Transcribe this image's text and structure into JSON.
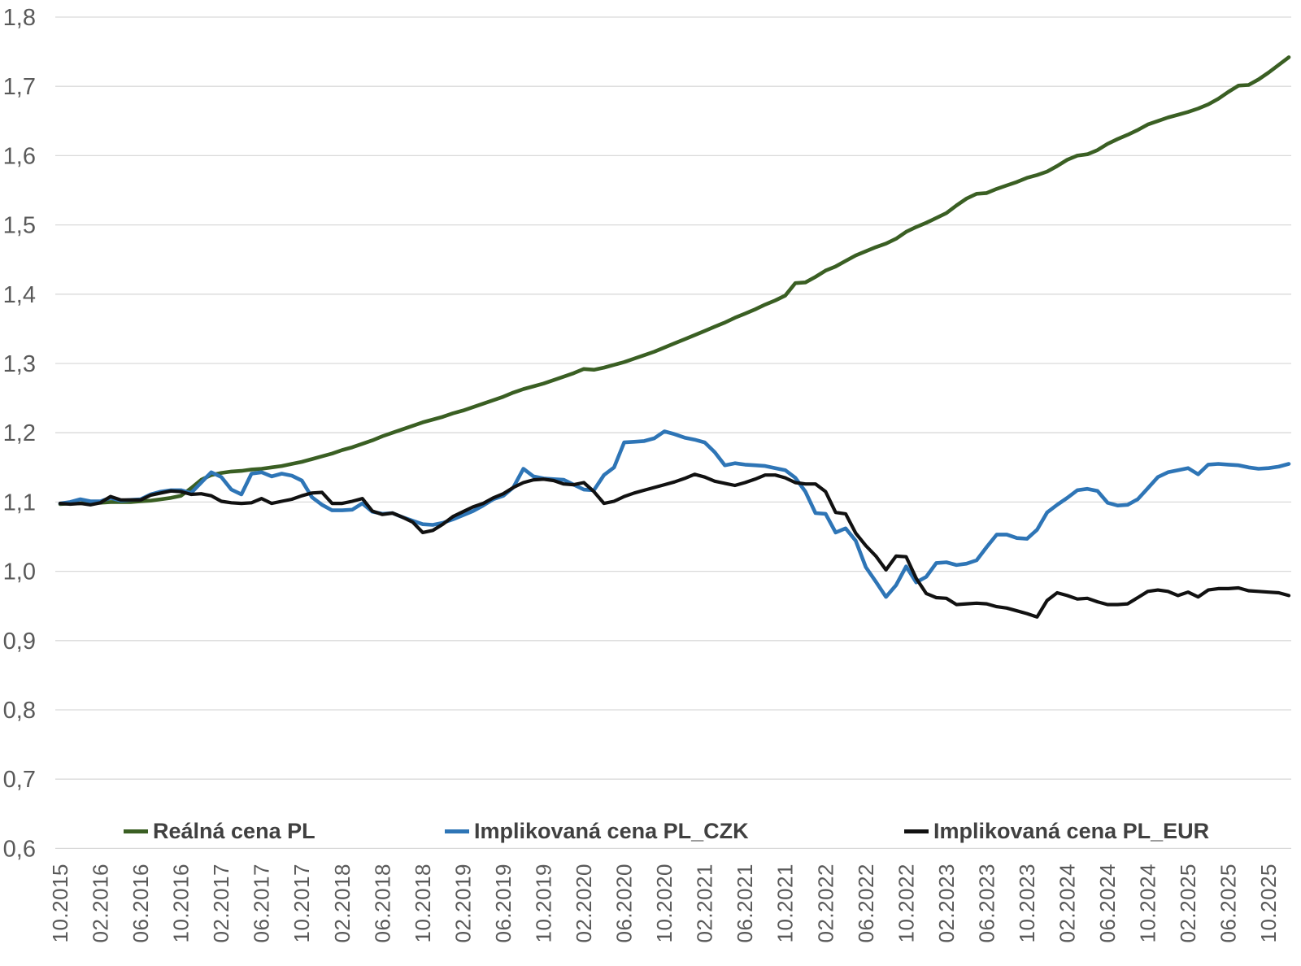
{
  "chart_data": {
    "type": "line",
    "title": "",
    "xlabel": "",
    "ylabel": "",
    "grid": "horizontal",
    "legend_position": "bottom-inside",
    "decimal_separator": ",",
    "y_axis": {
      "min": 0.6,
      "max": 1.8,
      "step": 0.1,
      "tick_labels": [
        "1,8",
        "1,7",
        "1,6",
        "1,5",
        "1,4",
        "1,3",
        "1,2",
        "1,1",
        "1,0",
        "0,9",
        "0,8",
        "0,7",
        "0,6"
      ]
    },
    "x_axis": {
      "unit": "month",
      "first_month": "10.2015",
      "last_month": "12.2025",
      "points_total": 123,
      "tick_every_n_months": 4,
      "tick_labels": [
        "10.2015",
        "02.2016",
        "06.2016",
        "10.2016",
        "02.2017",
        "06.2017",
        "10.2017",
        "02.2018",
        "06.2018",
        "10.2018",
        "02.2019",
        "06.2019",
        "10.2019",
        "02.2020",
        "06.2020",
        "10.2020",
        "02.2021",
        "06.2021",
        "10.2021",
        "02.2022",
        "06.2022",
        "10.2022",
        "02.2023",
        "06.2023",
        "10.2023",
        "02.2024",
        "06.2024",
        "10.2024",
        "02.2025",
        "06.2025",
        "10.2025"
      ]
    },
    "series": [
      {
        "name": "Reálná cena PL",
        "color": "#3A5F23",
        "stroke_width": 4.6,
        "values": [
          1.097,
          1.098,
          1.098,
          1.099,
          1.099,
          1.1,
          1.1,
          1.1,
          1.101,
          1.102,
          1.104,
          1.106,
          1.109,
          1.12,
          1.132,
          1.139,
          1.142,
          1.144,
          1.145,
          1.147,
          1.148,
          1.15,
          1.152,
          1.155,
          1.158,
          1.162,
          1.166,
          1.17,
          1.175,
          1.179,
          1.184,
          1.189,
          1.195,
          1.2,
          1.205,
          1.21,
          1.215,
          1.219,
          1.223,
          1.228,
          1.232,
          1.237,
          1.242,
          1.247,
          1.252,
          1.258,
          1.263,
          1.267,
          1.271,
          1.276,
          1.281,
          1.286,
          1.292,
          1.291,
          1.294,
          1.298,
          1.302,
          1.307,
          1.312,
          1.317,
          1.323,
          1.329,
          1.335,
          1.341,
          1.347,
          1.353,
          1.359,
          1.366,
          1.372,
          1.378,
          1.385,
          1.391,
          1.398,
          1.416,
          1.417,
          1.425,
          1.434,
          1.44,
          1.448,
          1.456,
          1.462,
          1.468,
          1.473,
          1.48,
          1.49,
          1.497,
          1.503,
          1.51,
          1.517,
          1.528,
          1.538,
          1.545,
          1.546,
          1.552,
          1.557,
          1.562,
          1.568,
          1.572,
          1.577,
          1.585,
          1.594,
          1.6,
          1.602,
          1.608,
          1.617,
          1.624,
          1.63,
          1.637,
          1.645,
          1.65,
          1.655,
          1.659,
          1.663,
          1.668,
          1.674,
          1.682,
          1.692,
          1.701,
          1.702,
          1.71,
          1.72,
          1.731,
          1.742
        ]
      },
      {
        "name": "Implikovaná cena PL_CZK",
        "color": "#2E75B6",
        "stroke_width": 4.6,
        "values": [
          1.098,
          1.1,
          1.104,
          1.101,
          1.101,
          1.106,
          1.102,
          1.103,
          1.104,
          1.111,
          1.115,
          1.117,
          1.117,
          1.113,
          1.128,
          1.143,
          1.136,
          1.118,
          1.111,
          1.141,
          1.143,
          1.137,
          1.141,
          1.138,
          1.131,
          1.107,
          1.096,
          1.088,
          1.088,
          1.089,
          1.098,
          1.086,
          1.083,
          1.084,
          1.078,
          1.073,
          1.068,
          1.067,
          1.07,
          1.075,
          1.081,
          1.087,
          1.095,
          1.104,
          1.109,
          1.121,
          1.148,
          1.137,
          1.134,
          1.133,
          1.132,
          1.125,
          1.118,
          1.117,
          1.139,
          1.15,
          1.186,
          1.187,
          1.188,
          1.192,
          1.202,
          1.198,
          1.193,
          1.19,
          1.186,
          1.172,
          1.153,
          1.156,
          1.154,
          1.153,
          1.152,
          1.149,
          1.146,
          1.135,
          1.115,
          1.084,
          1.083,
          1.056,
          1.062,
          1.044,
          1.006,
          0.985,
          0.963,
          0.98,
          1.007,
          0.984,
          0.992,
          1.012,
          1.013,
          1.009,
          1.011,
          1.016,
          1.035,
          1.053,
          1.053,
          1.048,
          1.047,
          1.06,
          1.085,
          1.096,
          1.106,
          1.117,
          1.119,
          1.116,
          1.099,
          1.095,
          1.096,
          1.104,
          1.12,
          1.136,
          1.143,
          1.146,
          1.149,
          1.14,
          1.154,
          1.155,
          1.154,
          1.153,
          1.15,
          1.148,
          1.149,
          1.151,
          1.155
        ]
      },
      {
        "name": "Implikovaná cena PL_EUR",
        "color": "#111111",
        "stroke_width": 4.2,
        "values": [
          1.098,
          1.097,
          1.098,
          1.096,
          1.099,
          1.108,
          1.103,
          1.103,
          1.103,
          1.11,
          1.113,
          1.116,
          1.115,
          1.111,
          1.112,
          1.109,
          1.101,
          1.099,
          1.098,
          1.099,
          1.105,
          1.098,
          1.101,
          1.104,
          1.109,
          1.113,
          1.114,
          1.098,
          1.098,
          1.101,
          1.105,
          1.087,
          1.082,
          1.084,
          1.078,
          1.071,
          1.056,
          1.059,
          1.068,
          1.079,
          1.086,
          1.093,
          1.098,
          1.106,
          1.112,
          1.121,
          1.128,
          1.132,
          1.133,
          1.131,
          1.126,
          1.125,
          1.128,
          1.115,
          1.098,
          1.101,
          1.108,
          1.113,
          1.117,
          1.121,
          1.125,
          1.129,
          1.134,
          1.14,
          1.136,
          1.13,
          1.127,
          1.124,
          1.128,
          1.133,
          1.139,
          1.139,
          1.135,
          1.128,
          1.126,
          1.126,
          1.115,
          1.085,
          1.083,
          1.055,
          1.037,
          1.022,
          1.002,
          1.022,
          1.021,
          0.99,
          0.968,
          0.962,
          0.961,
          0.952,
          0.953,
          0.954,
          0.953,
          0.949,
          0.947,
          0.943,
          0.939,
          0.934,
          0.958,
          0.969,
          0.965,
          0.96,
          0.961,
          0.956,
          0.952,
          0.952,
          0.953,
          0.962,
          0.971,
          0.973,
          0.971,
          0.965,
          0.97,
          0.963,
          0.973,
          0.975,
          0.975,
          0.976,
          0.972,
          0.971,
          0.97,
          0.969,
          0.965
        ]
      }
    ]
  }
}
